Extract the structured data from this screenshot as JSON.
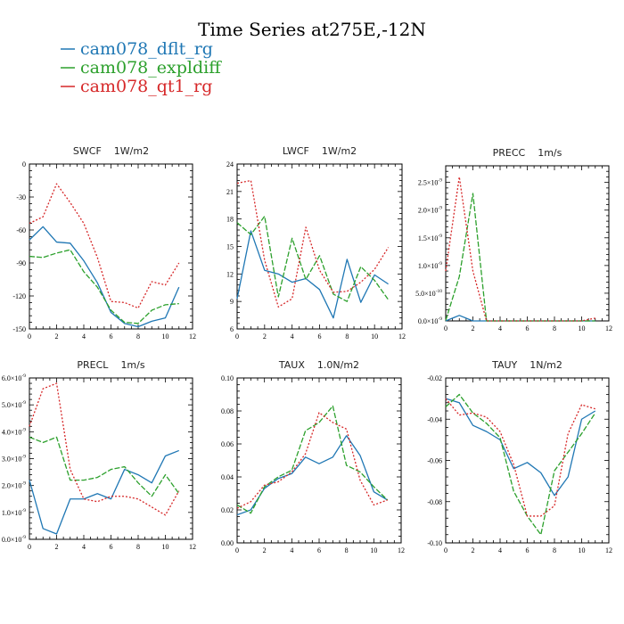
{
  "figure": {
    "title": "Time Series at275E,-12N"
  },
  "legend": [
    {
      "name": "cam078_dflt_rg",
      "color": "#1f77b4"
    },
    {
      "name": "cam078_expldiff",
      "color": "#2ca02c"
    },
    {
      "name": "cam078_qt1_rg",
      "color": "#d62728"
    }
  ],
  "chart_data": [
    {
      "type": "line",
      "title": "SWCF",
      "units": "1W/m2",
      "xlim": [
        0,
        12
      ],
      "ylim": [
        -150,
        0
      ],
      "x": [
        0,
        1,
        2,
        3,
        4,
        5,
        6,
        7,
        8,
        9,
        10,
        11
      ],
      "xticks": [
        0,
        2,
        4,
        6,
        8,
        10,
        12
      ],
      "yticks": [
        {
          "v": 0,
          "t": "0"
        },
        {
          "v": -30,
          "t": "-30"
        },
        {
          "v": -60,
          "t": "-60"
        },
        {
          "v": -90,
          "t": "-90"
        },
        {
          "v": -120,
          "t": "-120"
        },
        {
          "v": -150,
          "t": "-150"
        }
      ],
      "series": [
        {
          "name": "cam078_dflt_rg",
          "values": [
            -69,
            -57,
            -71,
            -72,
            -88,
            -108,
            -135,
            -145,
            -148,
            -143,
            -140,
            -112
          ]
        },
        {
          "name": "cam078_expldiff",
          "values": [
            -84,
            -85,
            -81,
            -78,
            -98,
            -112,
            -133,
            -144,
            -145,
            -133,
            -128,
            -127
          ]
        },
        {
          "name": "cam078_qt1_rg",
          "values": [
            -54,
            -48,
            -18,
            -35,
            -54,
            -85,
            -125,
            -126,
            -131,
            -107,
            -110,
            -90
          ]
        }
      ]
    },
    {
      "type": "line",
      "title": "LWCF",
      "units": "1W/m2",
      "xlim": [
        0,
        12
      ],
      "ylim": [
        6,
        24
      ],
      "x": [
        0,
        1,
        2,
        3,
        4,
        5,
        6,
        7,
        8,
        9,
        10,
        11
      ],
      "xticks": [
        0,
        2,
        4,
        6,
        8,
        10,
        12
      ],
      "yticks": [
        {
          "v": 6,
          "t": "6"
        },
        {
          "v": 9,
          "t": "9"
        },
        {
          "v": 12,
          "t": "12"
        },
        {
          "v": 15,
          "t": "15"
        },
        {
          "v": 18,
          "t": "18"
        },
        {
          "v": 21,
          "t": "21"
        },
        {
          "v": 24,
          "t": "24"
        }
      ],
      "series": [
        {
          "name": "cam078_dflt_rg",
          "values": [
            9.3,
            16.7,
            12.4,
            12.0,
            11.1,
            11.5,
            10.3,
            7.2,
            13.6,
            8.9,
            11.9,
            10.9
          ]
        },
        {
          "name": "cam078_expldiff",
          "values": [
            17.6,
            16.3,
            18.3,
            9.5,
            15.9,
            11.4,
            14.0,
            9.8,
            9.0,
            12.8,
            11.3,
            9.2
          ]
        },
        {
          "name": "cam078_qt1_rg",
          "values": [
            21.9,
            22.2,
            13.5,
            8.4,
            9.3,
            17.1,
            12.4,
            10.0,
            10.1,
            11.1,
            12.5,
            14.9
          ]
        }
      ]
    },
    {
      "type": "line",
      "title": "PRECC",
      "units": "1m/s",
      "xlim": [
        0,
        12
      ],
      "ylim": [
        0,
        2.8e-09
      ],
      "x": [
        0,
        1,
        2,
        3,
        4,
        5,
        6,
        7,
        8,
        9,
        10,
        11
      ],
      "xticks": [
        0,
        2,
        4,
        6,
        8,
        10,
        12
      ],
      "yticks": [
        {
          "v": 0,
          "m": "0.0",
          "e": "-9"
        },
        {
          "v": 5e-10,
          "m": "5.0",
          "e": "-10"
        },
        {
          "v": 1e-09,
          "m": "1.0",
          "e": "-9"
        },
        {
          "v": 1.5e-09,
          "m": "1.5",
          "e": "-9"
        },
        {
          "v": 2e-09,
          "m": "2.0",
          "e": "-9"
        },
        {
          "v": 2.5e-09,
          "m": "2.5",
          "e": "-9"
        }
      ],
      "series": [
        {
          "name": "cam078_dflt_rg",
          "values": [
            0,
            1e-10,
            0,
            0,
            0,
            0,
            0,
            0,
            0,
            0,
            0,
            0
          ]
        },
        {
          "name": "cam078_expldiff",
          "values": [
            1e-11,
            8e-10,
            2.3e-09,
            0,
            0,
            0,
            0,
            0,
            0,
            0,
            0,
            0
          ]
        },
        {
          "name": "cam078_qt1_rg",
          "values": [
            9e-10,
            2.6e-09,
            9e-10,
            0,
            0,
            0,
            0,
            0,
            0,
            0,
            0,
            5e-11
          ]
        }
      ]
    },
    {
      "type": "line",
      "title": "PRECL",
      "units": "1m/s",
      "xlim": [
        0,
        12
      ],
      "ylim": [
        0,
        6e-09
      ],
      "x": [
        0,
        1,
        2,
        3,
        4,
        5,
        6,
        7,
        8,
        9,
        10,
        11
      ],
      "xticks": [
        0,
        2,
        4,
        6,
        8,
        10,
        12
      ],
      "yticks": [
        {
          "v": 0,
          "m": "0.0",
          "e": "-9"
        },
        {
          "v": 1e-09,
          "m": "1.0",
          "e": "-9"
        },
        {
          "v": 2e-09,
          "m": "2.0",
          "e": "-9"
        },
        {
          "v": 3e-09,
          "m": "3.0",
          "e": "-9"
        },
        {
          "v": 4e-09,
          "m": "4.0",
          "e": "-9"
        },
        {
          "v": 5e-09,
          "m": "5.0",
          "e": "-9"
        },
        {
          "v": 6e-09,
          "m": "6.0",
          "e": "-9"
        }
      ],
      "series": [
        {
          "name": "cam078_dflt_rg",
          "values": [
            2.2e-09,
            4e-10,
            2e-10,
            1.5e-09,
            1.5e-09,
            1.7e-09,
            1.5e-09,
            2.6e-09,
            2.4e-09,
            2.1e-09,
            3.1e-09,
            3.3e-09
          ]
        },
        {
          "name": "cam078_expldiff",
          "values": [
            3.8e-09,
            3.6e-09,
            3.8e-09,
            2.2e-09,
            2.2e-09,
            2.3e-09,
            2.6e-09,
            2.7e-09,
            2.1e-09,
            1.6e-09,
            2.4e-09,
            1.7e-09
          ]
        },
        {
          "name": "cam078_qt1_rg",
          "values": [
            4.2e-09,
            5.6e-09,
            5.8e-09,
            2.6e-09,
            1.5e-09,
            1.4e-09,
            1.6e-09,
            1.6e-09,
            1.5e-09,
            1.2e-09,
            9e-10,
            1.8e-09
          ]
        }
      ]
    },
    {
      "type": "line",
      "title": "TAUX",
      "units": "1.0N/m2",
      "xlim": [
        0,
        12
      ],
      "ylim": [
        0,
        0.1
      ],
      "x": [
        0,
        1,
        2,
        3,
        4,
        5,
        6,
        7,
        8,
        9,
        10,
        11
      ],
      "xticks": [
        0,
        2,
        4,
        6,
        8,
        10,
        12
      ],
      "yticks": [
        {
          "v": 0,
          "t": "0.00"
        },
        {
          "v": 0.02,
          "t": "0.02"
        },
        {
          "v": 0.04,
          "t": "0.04"
        },
        {
          "v": 0.06,
          "t": "0.06"
        },
        {
          "v": 0.08,
          "t": "0.08"
        },
        {
          "v": 0.1,
          "t": "0.10"
        }
      ],
      "series": [
        {
          "name": "cam078_dflt_rg",
          "values": [
            0.017,
            0.02,
            0.033,
            0.039,
            0.042,
            0.052,
            0.048,
            0.052,
            0.065,
            0.053,
            0.031,
            0.026
          ]
        },
        {
          "name": "cam078_expldiff",
          "values": [
            0.023,
            0.018,
            0.034,
            0.04,
            0.044,
            0.068,
            0.073,
            0.083,
            0.047,
            0.043,
            0.034,
            0.026
          ]
        },
        {
          "name": "cam078_qt1_rg",
          "values": [
            0.021,
            0.025,
            0.035,
            0.037,
            0.043,
            0.054,
            0.079,
            0.073,
            0.069,
            0.038,
            0.023,
            0.026
          ]
        }
      ]
    },
    {
      "type": "line",
      "title": "TAUY",
      "units": "1N/m2",
      "xlim": [
        0,
        12
      ],
      "ylim": [
        -0.1,
        -0.02
      ],
      "x": [
        0,
        1,
        2,
        3,
        4,
        5,
        6,
        7,
        8,
        9,
        10,
        11
      ],
      "xticks": [
        0,
        2,
        4,
        6,
        8,
        10,
        12
      ],
      "yticks": [
        {
          "v": -0.02,
          "t": "-0.02"
        },
        {
          "v": -0.04,
          "t": "-0.04"
        },
        {
          "v": -0.06,
          "t": "-0.06"
        },
        {
          "v": -0.08,
          "t": "-0.08"
        },
        {
          "v": -0.1,
          "t": "-0.10"
        }
      ],
      "series": [
        {
          "name": "cam078_dflt_rg",
          "values": [
            -0.03,
            -0.032,
            -0.043,
            -0.046,
            -0.05,
            -0.064,
            -0.061,
            -0.066,
            -0.077,
            -0.068,
            -0.04,
            -0.036
          ]
        },
        {
          "name": "cam078_expldiff",
          "values": [
            -0.034,
            -0.028,
            -0.037,
            -0.042,
            -0.049,
            -0.075,
            -0.087,
            -0.096,
            -0.065,
            -0.056,
            -0.047,
            -0.037
          ]
        },
        {
          "name": "cam078_qt1_rg",
          "values": [
            -0.03,
            -0.038,
            -0.037,
            -0.039,
            -0.046,
            -0.062,
            -0.087,
            -0.087,
            -0.082,
            -0.047,
            -0.033,
            -0.035
          ]
        }
      ]
    }
  ]
}
